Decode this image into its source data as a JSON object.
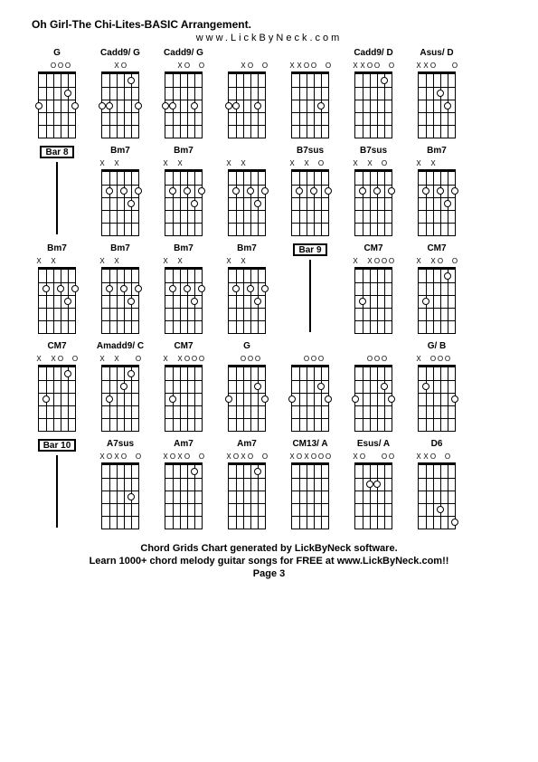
{
  "title": "Oh Girl-The Chi-Lites-BASIC Arrangement.",
  "url": "www.LickByNeck.com",
  "footer": {
    "line1": "Chord Grids Chart generated by LickByNeck software.",
    "line2": "Learn 1000+ chord melody guitar songs for FREE at www.LickByNeck.com!!",
    "page": "Page 3"
  },
  "num_frets": 5,
  "num_strings": 6,
  "chords": [
    {
      "type": "chord",
      "label": "G",
      "markers": [
        "",
        "",
        "O",
        "O",
        "O",
        ""
      ],
      "dots": [
        [
          3,
          1
        ],
        [
          2,
          5
        ],
        [
          3,
          6
        ]
      ]
    },
    {
      "type": "chord",
      "label": "Cadd9/ G",
      "markers": [
        "",
        "",
        "X",
        "O",
        "",
        ""
      ],
      "dots": [
        [
          3,
          1
        ],
        [
          3,
          2
        ],
        [
          1,
          5
        ],
        [
          3,
          6
        ]
      ]
    },
    {
      "type": "chord",
      "label": "Cadd9/ G",
      "markers": [
        "",
        "",
        "X",
        "O",
        "",
        "O"
      ],
      "dots": [
        [
          3,
          1
        ],
        [
          3,
          2
        ],
        [
          3,
          5
        ]
      ]
    },
    {
      "type": "chord",
      "label": "",
      "markers": [
        "",
        "",
        "X",
        "O",
        "",
        "O"
      ],
      "dots": [
        [
          3,
          1
        ],
        [
          3,
          2
        ],
        [
          3,
          5
        ]
      ]
    },
    {
      "type": "chord",
      "label": "",
      "markers": [
        "X",
        "X",
        "O",
        "O",
        "",
        "O"
      ],
      "dots": [
        [
          3,
          5
        ]
      ]
    },
    {
      "type": "chord",
      "label": "Cadd9/ D",
      "markers": [
        "X",
        "X",
        "O",
        "O",
        "",
        "O"
      ],
      "dots": [
        [
          1,
          5
        ]
      ]
    },
    {
      "type": "chord",
      "label": "Asus/ D",
      "markers": [
        "X",
        "X",
        "O",
        "",
        "",
        "O"
      ],
      "dots": [
        [
          2,
          4
        ],
        [
          3,
          5
        ]
      ]
    },
    {
      "type": "bar",
      "label": "Bar 8"
    },
    {
      "type": "chord",
      "label": "Bm7",
      "markers": [
        "X",
        "",
        "X",
        "",
        "",
        ""
      ],
      "dots": [
        [
          2,
          2
        ],
        [
          2,
          4
        ],
        [
          3,
          5
        ],
        [
          2,
          6
        ]
      ]
    },
    {
      "type": "chord",
      "label": "Bm7",
      "markers": [
        "X",
        "",
        "X",
        "",
        "",
        ""
      ],
      "dots": [
        [
          2,
          2
        ],
        [
          2,
          4
        ],
        [
          3,
          5
        ],
        [
          2,
          6
        ]
      ]
    },
    {
      "type": "chord",
      "label": "",
      "markers": [
        "X",
        "",
        "X",
        "",
        "",
        ""
      ],
      "dots": [
        [
          2,
          2
        ],
        [
          2,
          4
        ],
        [
          3,
          5
        ],
        [
          2,
          6
        ]
      ]
    },
    {
      "type": "chord",
      "label": "B7sus",
      "markers": [
        "X",
        "",
        "X",
        "",
        "O",
        ""
      ],
      "dots": [
        [
          2,
          2
        ],
        [
          2,
          4
        ],
        [
          2,
          6
        ]
      ]
    },
    {
      "type": "chord",
      "label": "B7sus",
      "markers": [
        "X",
        "",
        "X",
        "",
        "O",
        ""
      ],
      "dots": [
        [
          2,
          2
        ],
        [
          2,
          4
        ],
        [
          2,
          6
        ]
      ]
    },
    {
      "type": "chord",
      "label": "Bm7",
      "markers": [
        "X",
        "",
        "X",
        "",
        "",
        ""
      ],
      "dots": [
        [
          2,
          2
        ],
        [
          2,
          4
        ],
        [
          3,
          5
        ],
        [
          2,
          6
        ]
      ]
    },
    {
      "type": "chord",
      "label": "Bm7",
      "markers": [
        "X",
        "",
        "X",
        "",
        "",
        ""
      ],
      "dots": [
        [
          2,
          2
        ],
        [
          2,
          4
        ],
        [
          3,
          5
        ],
        [
          2,
          6
        ]
      ]
    },
    {
      "type": "chord",
      "label": "Bm7",
      "markers": [
        "X",
        "",
        "X",
        "",
        "",
        ""
      ],
      "dots": [
        [
          2,
          2
        ],
        [
          2,
          4
        ],
        [
          3,
          5
        ],
        [
          2,
          6
        ]
      ]
    },
    {
      "type": "chord",
      "label": "Bm7",
      "markers": [
        "X",
        "",
        "X",
        "",
        "",
        ""
      ],
      "dots": [
        [
          2,
          2
        ],
        [
          2,
          4
        ],
        [
          3,
          5
        ],
        [
          2,
          6
        ]
      ]
    },
    {
      "type": "chord",
      "label": "Bm7",
      "markers": [
        "X",
        "",
        "X",
        "",
        "",
        ""
      ],
      "dots": [
        [
          2,
          2
        ],
        [
          2,
          4
        ],
        [
          3,
          5
        ],
        [
          2,
          6
        ]
      ]
    },
    {
      "type": "bar",
      "label": "Bar 9"
    },
    {
      "type": "chord",
      "label": "CM7",
      "markers": [
        "X",
        "",
        "X",
        "O",
        "O",
        "O"
      ],
      "dots": [
        [
          3,
          2
        ]
      ]
    },
    {
      "type": "chord",
      "label": "CM7",
      "markers": [
        "X",
        "",
        "X",
        "O",
        "",
        "O"
      ],
      "dots": [
        [
          3,
          2
        ],
        [
          1,
          5
        ]
      ]
    },
    {
      "type": "chord",
      "label": "CM7",
      "markers": [
        "X",
        "",
        "X",
        "O",
        "",
        "O"
      ],
      "dots": [
        [
          3,
          2
        ],
        [
          1,
          5
        ]
      ]
    },
    {
      "type": "chord",
      "label": "Amadd9/ C",
      "markers": [
        "X",
        "",
        "X",
        "",
        "",
        "O"
      ],
      "dots": [
        [
          3,
          2
        ],
        [
          2,
          4
        ],
        [
          1,
          5
        ]
      ]
    },
    {
      "type": "chord",
      "label": "CM7",
      "markers": [
        "X",
        "",
        "X",
        "O",
        "O",
        "O"
      ],
      "dots": [
        [
          3,
          2
        ]
      ]
    },
    {
      "type": "chord",
      "label": "G",
      "markers": [
        "",
        "",
        "O",
        "O",
        "O",
        ""
      ],
      "dots": [
        [
          3,
          1
        ],
        [
          2,
          5
        ],
        [
          3,
          6
        ]
      ]
    },
    {
      "type": "chord",
      "label": "",
      "markers": [
        "",
        "",
        "O",
        "O",
        "O",
        ""
      ],
      "dots": [
        [
          3,
          1
        ],
        [
          2,
          5
        ],
        [
          3,
          6
        ]
      ]
    },
    {
      "type": "chord",
      "label": "",
      "markers": [
        "",
        "",
        "O",
        "O",
        "O",
        ""
      ],
      "dots": [
        [
          3,
          1
        ],
        [
          2,
          5
        ],
        [
          3,
          6
        ]
      ]
    },
    {
      "type": "chord",
      "label": "G/ B",
      "markers": [
        "X",
        "",
        "O",
        "O",
        "O",
        ""
      ],
      "dots": [
        [
          2,
          2
        ],
        [
          3,
          6
        ]
      ]
    },
    {
      "type": "bar",
      "label": "Bar 10"
    },
    {
      "type": "chord",
      "label": "A7sus",
      "markers": [
        "X",
        "O",
        "X",
        "O",
        "",
        "O"
      ],
      "dots": [
        [
          3,
          5
        ]
      ]
    },
    {
      "type": "chord",
      "label": "Am7",
      "markers": [
        "X",
        "O",
        "X",
        "O",
        "",
        "O"
      ],
      "dots": [
        [
          1,
          5
        ]
      ]
    },
    {
      "type": "chord",
      "label": "Am7",
      "markers": [
        "X",
        "O",
        "X",
        "O",
        "",
        "O"
      ],
      "dots": [
        [
          1,
          5
        ]
      ]
    },
    {
      "type": "chord",
      "label": "CM13/ A",
      "markers": [
        "X",
        "O",
        "X",
        "O",
        "O",
        "O"
      ],
      "dots": []
    },
    {
      "type": "chord",
      "label": "Esus/ A",
      "markers": [
        "X",
        "O",
        "",
        "",
        "O",
        "O"
      ],
      "dots": [
        [
          2,
          3
        ],
        [
          2,
          4
        ]
      ]
    },
    {
      "type": "chord",
      "label": "D6",
      "markers": [
        "X",
        "X",
        "O",
        "",
        "O",
        ""
      ],
      "dots": [
        [
          4,
          4
        ],
        [
          5,
          6
        ]
      ]
    }
  ]
}
